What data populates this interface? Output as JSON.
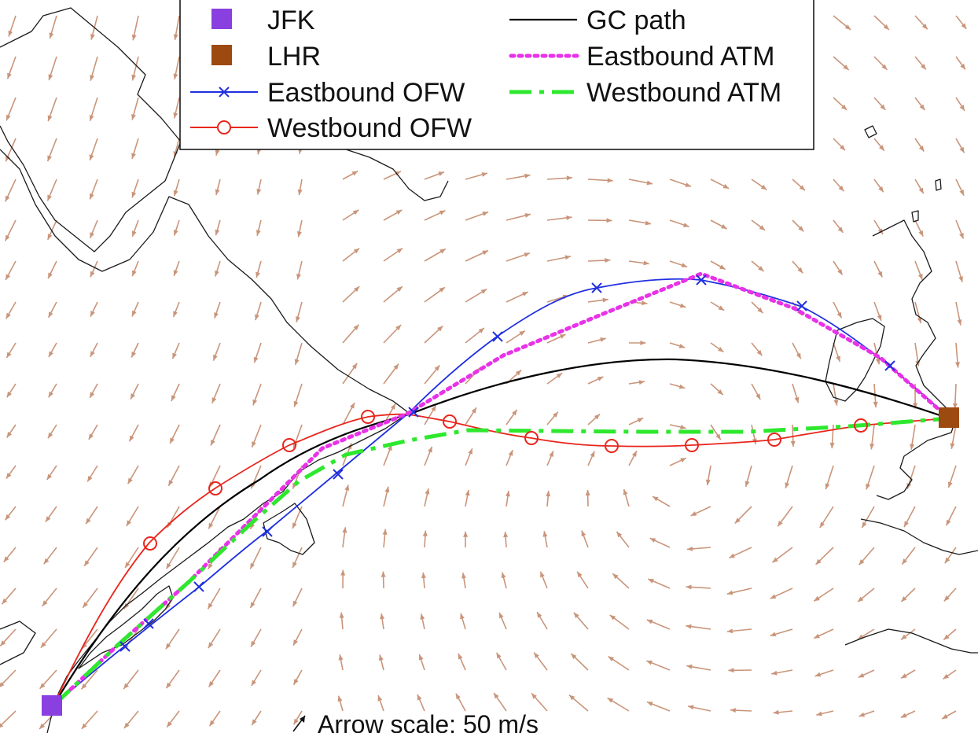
{
  "legend": {
    "jfk_label": "JFK",
    "lhr_label": "LHR",
    "eb_ofw_label": "Eastbound OFW",
    "wb_ofw_label": "Westbound OFW",
    "gc_label": "GC path",
    "eb_atm_label": "Eastbound ATM",
    "wb_atm_label": "Westbound ATM"
  },
  "arrow_scale_label": "Arrow scale: 50 m/s",
  "colors": {
    "jfk": "#8a3fe0",
    "lhr": "#9c4a10",
    "eastbound_ofw": "#1f2fe0",
    "westbound_ofw": "#e8261c",
    "gc_path": "#000000",
    "eastbound_atm": "#e832e8",
    "westbound_atm": "#2ee82e",
    "wind_arrows": "#c9957a",
    "coastline": "#1a1a1a"
  },
  "airports": [
    {
      "code": "JFK",
      "marker": "filled-square"
    },
    {
      "code": "LHR",
      "marker": "filled-square"
    }
  ],
  "routes": [
    {
      "name": "GC path",
      "style": "solid"
    },
    {
      "name": "Eastbound OFW",
      "style": "solid",
      "marker": "x"
    },
    {
      "name": "Westbound OFW",
      "style": "solid",
      "marker": "circle"
    },
    {
      "name": "Eastbound ATM",
      "style": "dotted"
    },
    {
      "name": "Westbound ATM",
      "style": "dash-dot"
    }
  ]
}
